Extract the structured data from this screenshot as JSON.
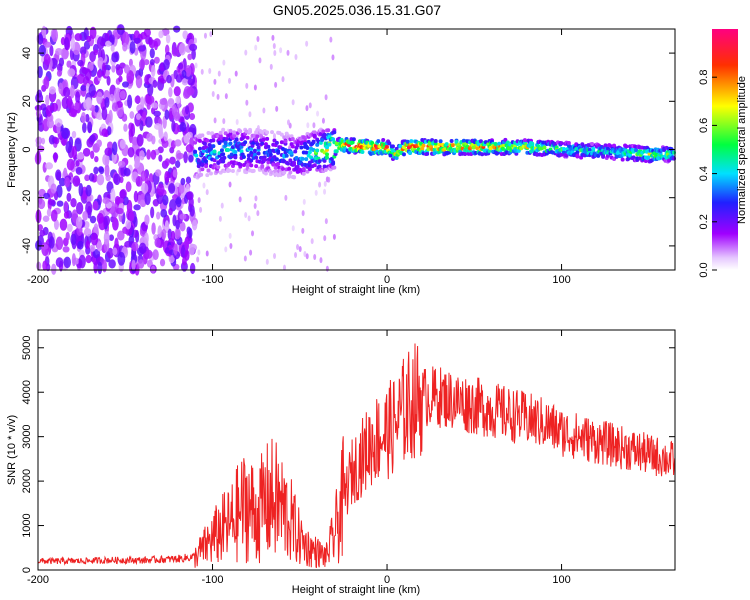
{
  "figure": {
    "title": "GN05.2025.036.15.31.G07"
  },
  "colors": {
    "background": "#ffffff",
    "axis": "#000000",
    "snr_line": "#ee2222",
    "colormap": [
      "#ffffff",
      "#a000ff",
      "#2020ff",
      "#00e0ff",
      "#00ff40",
      "#ffff00",
      "#ff3000",
      "#ff0080"
    ]
  },
  "chart_data": [
    {
      "type": "heatmap",
      "title": "GN05.2025.036.15.31.G07",
      "xlabel": "Height of straight line (km)",
      "ylabel": "Frequency (Hz)",
      "xlim": [
        -200,
        165
      ],
      "ylim": [
        -50,
        50
      ],
      "x_ticks": [
        -200,
        -100,
        0,
        100
      ],
      "y_ticks": [
        -40,
        -20,
        0,
        20,
        40
      ],
      "colorbar": {
        "label": "Normalized spectral amplitude",
        "range": [
          0,
          1
        ],
        "ticks": [
          "0.0",
          "0.2",
          "0.4",
          "0.6",
          "0.8"
        ]
      },
      "signal_track": {
        "height_km": [
          -110,
          -90,
          -70,
          -50,
          -40,
          -30,
          -25,
          -10,
          0,
          5,
          10,
          40,
          80,
          100,
          130,
          150,
          165
        ],
        "frequency_hz": [
          -3,
          0,
          -1,
          -3,
          -1,
          1,
          2,
          1,
          1,
          -2,
          1,
          1,
          1,
          0,
          -1,
          -2,
          -2
        ],
        "amplitude": [
          0.4,
          0.45,
          0.35,
          0.4,
          0.6,
          0.8,
          0.95,
          0.95,
          0.95,
          0.7,
          0.95,
          0.95,
          0.75,
          0.6,
          0.5,
          0.7,
          0.55
        ]
      },
      "noise_region": {
        "height_km": [
          -200,
          -110
        ],
        "amplitude_level": 0.15
      }
    },
    {
      "type": "line",
      "xlabel": "Height of straight line (km)",
      "ylabel": "SNR (10 * v/v)",
      "xlim": [
        -200,
        165
      ],
      "ylim": [
        0,
        5400
      ],
      "x_ticks": [
        -200,
        -100,
        0,
        100
      ],
      "y_ticks": [
        0,
        1000,
        2000,
        3000,
        4000,
        5000
      ],
      "series": [
        {
          "x": [
            -200,
            -180,
            -160,
            -140,
            -120,
            -110,
            -100,
            -95,
            -90,
            -85,
            -80,
            -75,
            -70,
            -65,
            -60,
            -55,
            -50,
            -45,
            -40,
            -35,
            -30,
            -25,
            -20,
            -15,
            -10,
            -5,
            0,
            5,
            10,
            15,
            20,
            30,
            40,
            50,
            60,
            70,
            80,
            90,
            100,
            110,
            120,
            130,
            140,
            150,
            160,
            165
          ],
          "y": [
            200,
            200,
            220,
            220,
            250,
            300,
            700,
            900,
            1000,
            1300,
            1500,
            1200,
            1500,
            1600,
            1400,
            1100,
            700,
            500,
            400,
            300,
            800,
            1600,
            2200,
            2500,
            2800,
            3000,
            3100,
            3300,
            3600,
            3800,
            3900,
            3900,
            3800,
            3700,
            3600,
            3500,
            3400,
            3300,
            3100,
            3000,
            2900,
            2800,
            2700,
            2600,
            2500,
            2450
          ]
        }
      ]
    }
  ]
}
